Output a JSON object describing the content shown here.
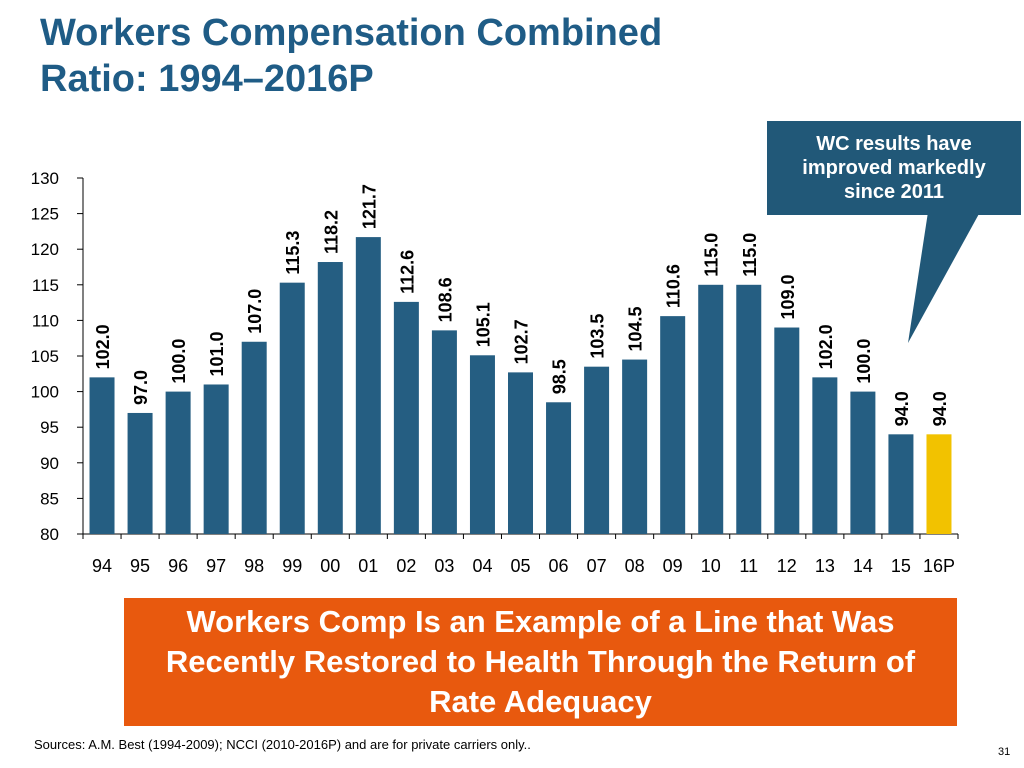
{
  "title": {
    "line1": "Workers Compensation Combined",
    "line2": "Ratio: 1994–2016P"
  },
  "callout": {
    "text": "WC results have improved markedly since 2011",
    "color": "#215878"
  },
  "banner": {
    "text": "Workers Comp Is an Example of a Line that Was Recently Restored to Health Through the Return of Rate Adequacy",
    "color": "#e8590e"
  },
  "sources": "Sources: A.M. Best (1994-2009); NCCI (2010-2016P) and are for private carriers only..",
  "page_number": "31",
  "chart_data": {
    "type": "bar",
    "title": "",
    "xlabel": "",
    "ylabel": "",
    "ylim": [
      80,
      130
    ],
    "yticks": [
      80,
      85,
      90,
      95,
      100,
      105,
      110,
      115,
      120,
      125,
      130
    ],
    "grid": false,
    "categories": [
      "94",
      "95",
      "96",
      "97",
      "98",
      "99",
      "00",
      "01",
      "02",
      "03",
      "04",
      "05",
      "06",
      "07",
      "08",
      "09",
      "10",
      "11",
      "12",
      "13",
      "14",
      "15",
      "16P"
    ],
    "values": [
      102.0,
      97.0,
      100.0,
      101.0,
      107.0,
      115.3,
      118.2,
      121.7,
      112.6,
      108.6,
      105.1,
      102.7,
      98.5,
      103.5,
      104.5,
      110.6,
      115.0,
      115.0,
      109.0,
      102.0,
      100.0,
      94.0,
      94.0
    ],
    "data_labels": [
      "102.0",
      "97.0",
      "100.0",
      "101.0",
      "107.0",
      "115.3",
      "118.2",
      "121.7",
      "112.6",
      "108.6",
      "105.1",
      "102.7",
      "98.5",
      "103.5",
      "104.5",
      "110.6",
      "115.0",
      "115.0",
      "109.0",
      "102.0",
      "100.0",
      "94.0",
      "94.0"
    ],
    "bar_color": "#255e82",
    "highlight_index": 22,
    "highlight_color": "#f2c200"
  }
}
